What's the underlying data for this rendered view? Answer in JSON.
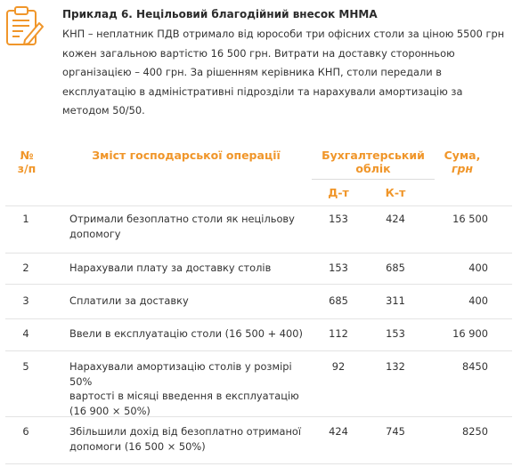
{
  "example": {
    "title": "Приклад 6. Нецільовий благодійний внесок МНМА",
    "text": "КНП – неплатник ПДВ отримало від юрособи три офісних столи за ціною 5500 грн кожен загальною вартістю 16 500 грн. Витрати на доставку сторонньою організацією – 400 грн. За рішенням керівника КНП, столи передали в експлуатацію в адміністративні підрозділи та нарахували амортизацію за методом 50/50.",
    "icon": "clipboard-pencil-icon"
  },
  "colors": {
    "accent": "#f0962a",
    "text": "#333333",
    "divider": "#e3e3e3"
  },
  "table": {
    "headers": {
      "num_line1": "№",
      "num_line2": "з/п",
      "content": "Зміст господарської операції",
      "accounting_line1": "Бухгалтерський",
      "accounting_line2": "облік",
      "debit": "Д-т",
      "credit": "К-т",
      "sum_line1": "Сума,",
      "sum_line2": "грн"
    },
    "rows": [
      {
        "num": "1",
        "desc": [
          "Отримали безоплатно столи як нецільову",
          "допомогу"
        ],
        "debit": "153",
        "credit": "424",
        "sum": "16 500"
      },
      {
        "num": "2",
        "desc": [
          "Нарахували плату за доставку столів"
        ],
        "debit": "153",
        "credit": "685",
        "sum": "400"
      },
      {
        "num": "3",
        "desc": [
          "Сплатили за доставку"
        ],
        "debit": "685",
        "credit": "311",
        "sum": "400"
      },
      {
        "num": "4",
        "desc": [
          "Ввели в експлуатацію столи (16 500 + 400)"
        ],
        "debit": "112",
        "credit": "153",
        "sum": "16 900"
      },
      {
        "num": "5",
        "desc": [
          "Нарахували амортизацію столів у розмірі 50%",
          "вартості в місяці введення в експлуатацію",
          "(16 900 × 50%)"
        ],
        "debit": "92",
        "credit": "132",
        "sum": "8450"
      },
      {
        "num": "6",
        "desc": [
          "Збільшили дохід від безоплатно отриманої",
          "допомоги (16 500 × 50%)"
        ],
        "debit": "424",
        "credit": "745",
        "sum": "8250"
      }
    ]
  }
}
